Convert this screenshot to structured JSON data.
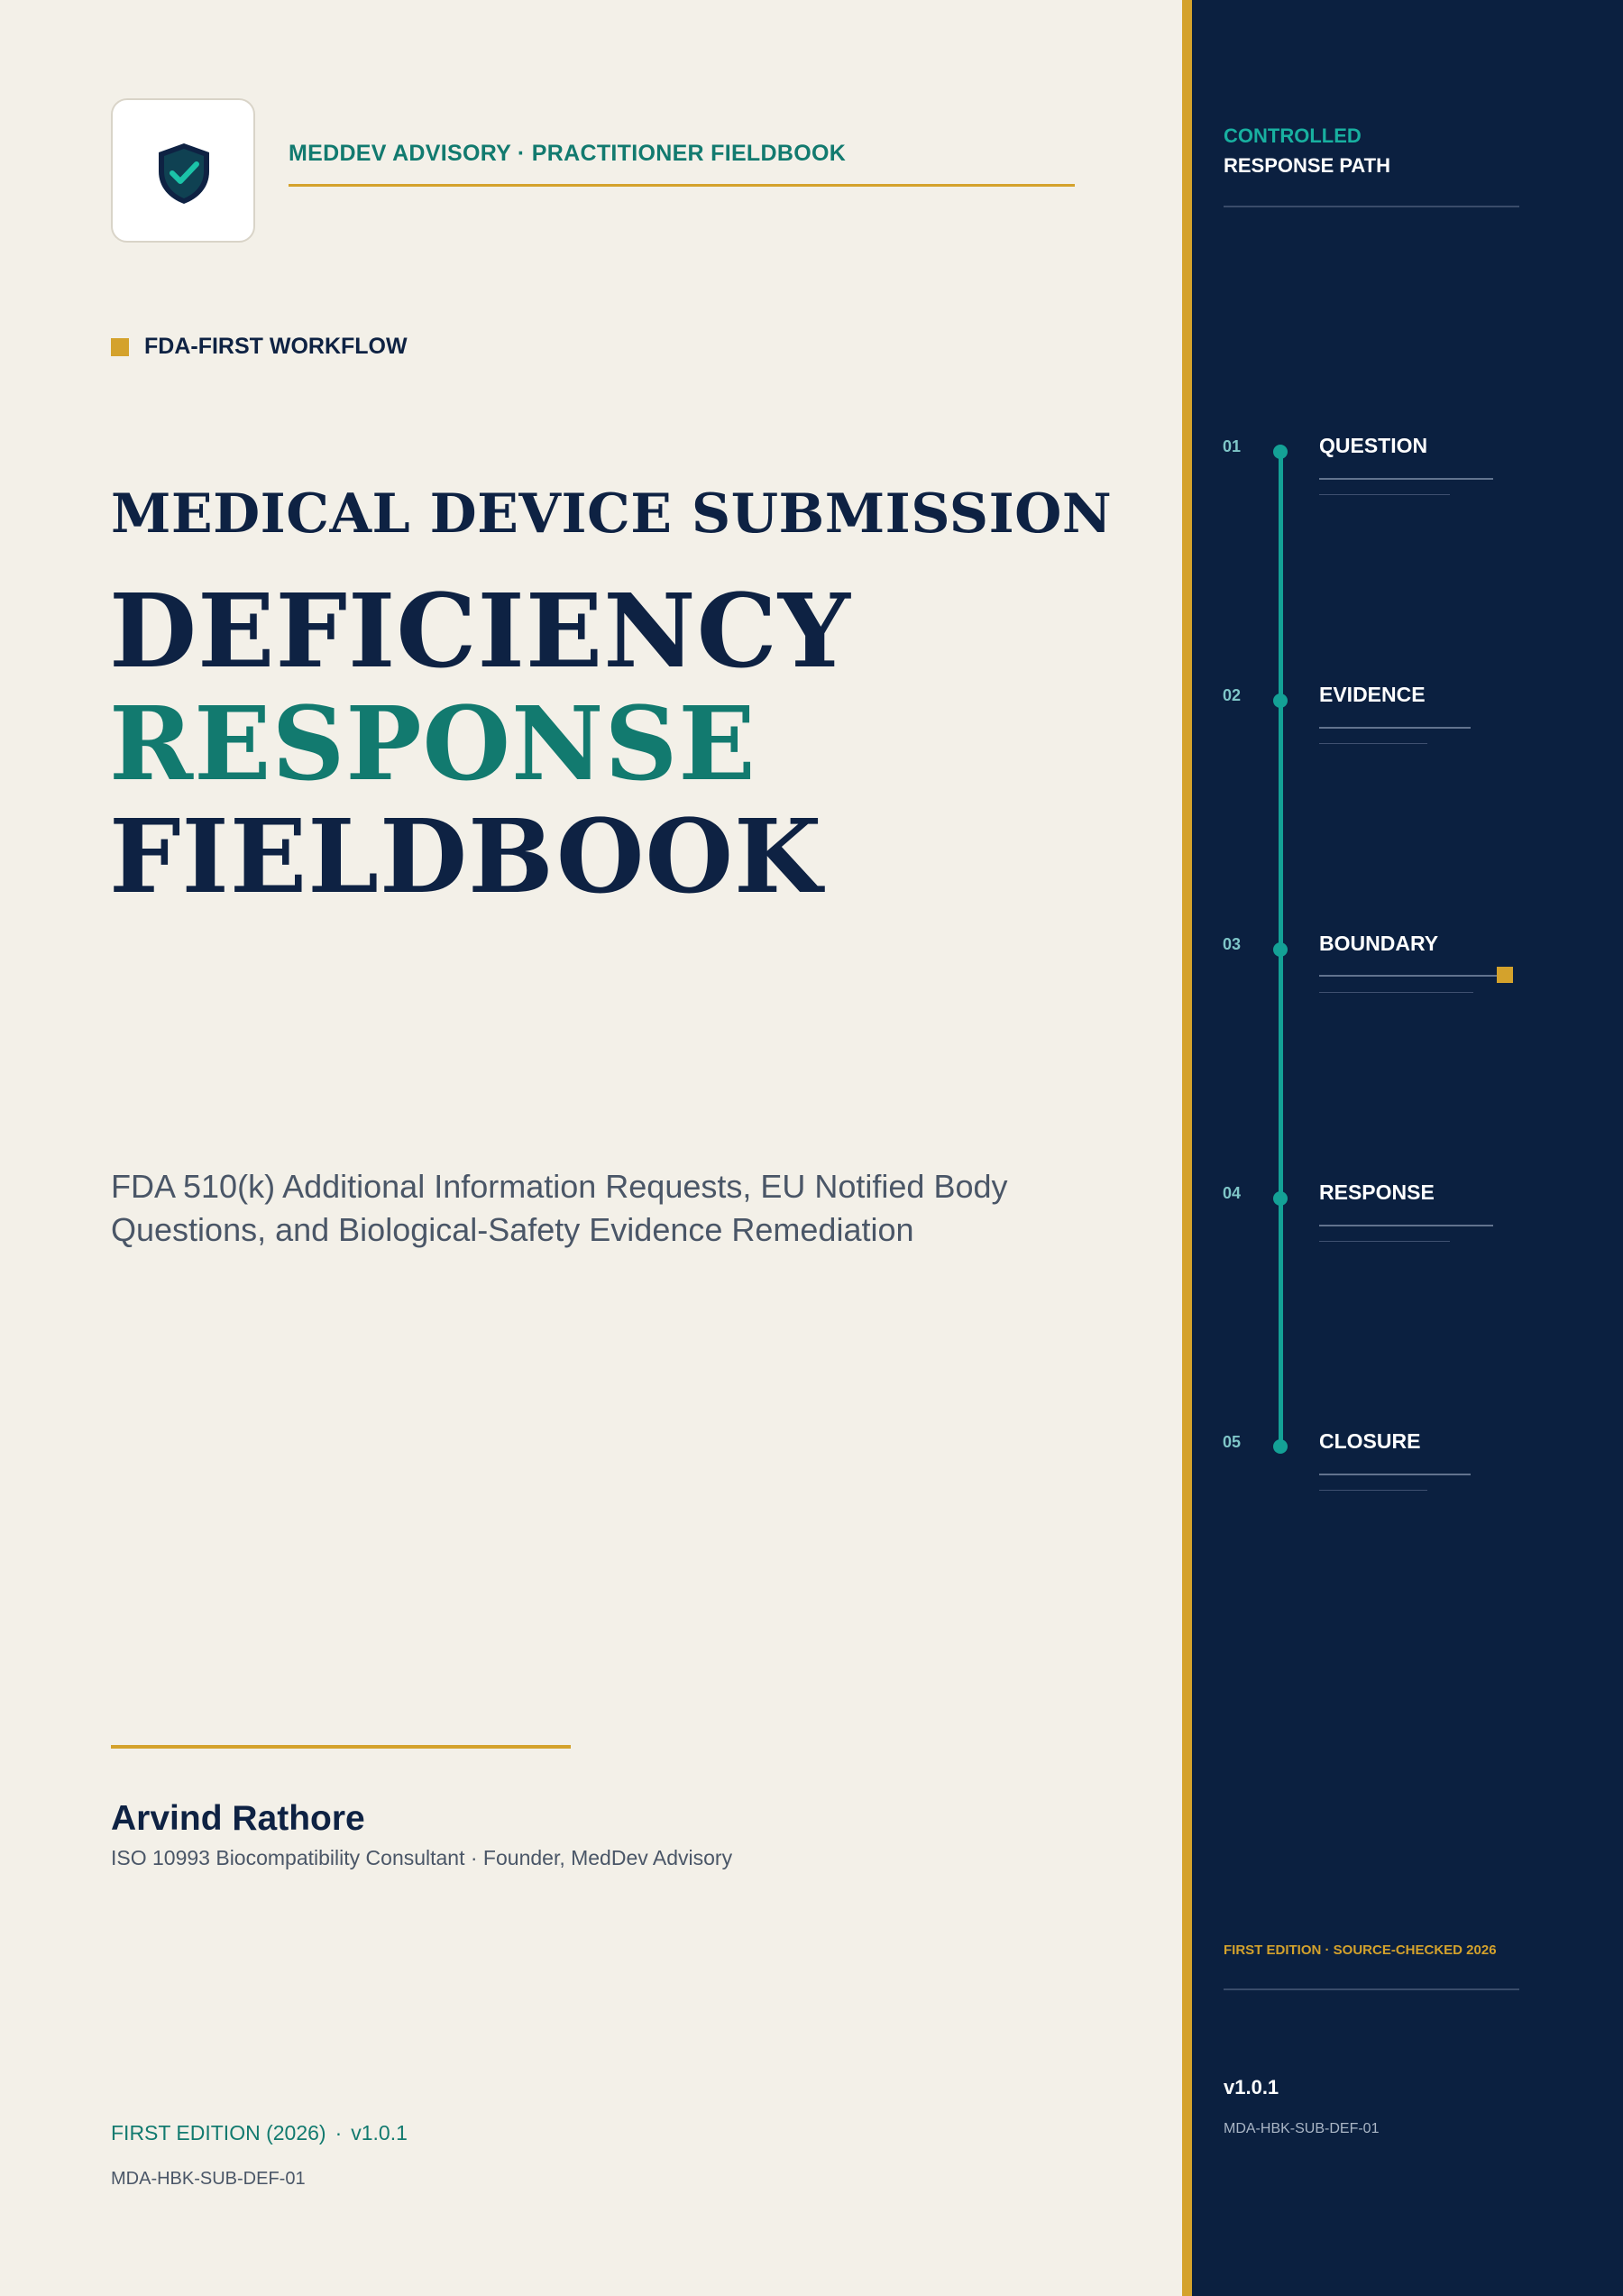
{
  "colors": {
    "background": "#f3f0e8",
    "navy": "#0e2243",
    "teal": "#127a6f",
    "gold": "#d4a22c",
    "rail": "#0b2040",
    "timeline": "#14a196"
  },
  "header": {
    "logo_icon": "shield-check-icon",
    "publisher": "MEDDEV ADVISORY · PRACTITIONER FIELDBOOK"
  },
  "workflow_label": "FDA-FIRST WORKFLOW",
  "title": {
    "pre": "MEDICAL DEVICE SUBMISSION",
    "line1": "DEFICIENCY",
    "line2": "RESPONSE",
    "line3": "FIELDBOOK"
  },
  "subtitle": "FDA 510(k) Additional Information Requests, EU Notified Body Questions, and Biological-Safety Evidence Remediation",
  "author": {
    "name": "Arvind Rathore",
    "role": "ISO 10993 Biocompatibility Consultant · Founder, MedDev Advisory"
  },
  "footer": {
    "edition": "FIRST EDITION (2026)",
    "separator": "·",
    "version": "v1.0.1",
    "doc_code": "MDA-HBK-SUB-DEF-01"
  },
  "rail": {
    "kicker": "CONTROLLED",
    "title": "RESPONSE PATH",
    "steps": [
      {
        "num": "01",
        "label": "QUESTION"
      },
      {
        "num": "02",
        "label": "EVIDENCE"
      },
      {
        "num": "03",
        "label": "BOUNDARY"
      },
      {
        "num": "04",
        "label": "RESPONSE"
      },
      {
        "num": "05",
        "label": "CLOSURE"
      }
    ],
    "edition": "FIRST EDITION · SOURCE-CHECKED 2026",
    "version": "v1.0.1",
    "doc_code": "MDA-HBK-SUB-DEF-01"
  }
}
